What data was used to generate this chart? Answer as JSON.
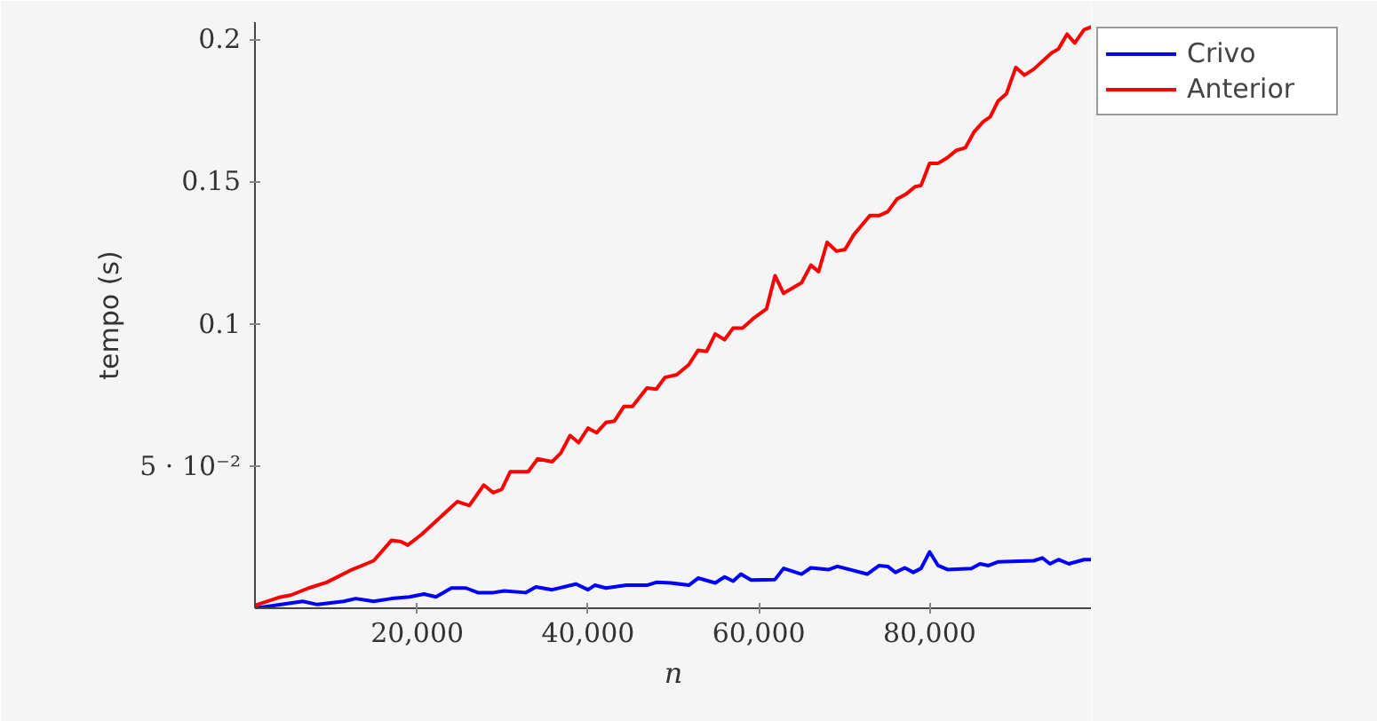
{
  "chart_data": {
    "type": "line",
    "xlabel": "n",
    "ylabel": "tempo (s)",
    "xlim": [
      1000,
      99000
    ],
    "ylim": [
      0,
      0.206
    ],
    "xticks": [
      {
        "value": 20000,
        "label": "20,000"
      },
      {
        "value": 40000,
        "label": "40,000"
      },
      {
        "value": 60000,
        "label": "60,000"
      },
      {
        "value": 80000,
        "label": "80,000"
      }
    ],
    "yticks": [
      {
        "value": 0.05,
        "label": "5 · 10⁻²"
      },
      0.1,
      0.15,
      0.2
    ],
    "grid": false,
    "legend": "top right",
    "marker": "none",
    "line_style": "solid",
    "series": [
      {
        "name": "Crivo",
        "color": "#0000ff",
        "x": [
          1000,
          6600,
          8300,
          11400,
          12800,
          14900,
          17000,
          19100,
          20800,
          22200,
          24000,
          25700,
          27100,
          28900,
          30200,
          32700,
          33900,
          35800,
          38600,
          40000,
          40800,
          42100,
          44500,
          46900,
          48000,
          49700,
          51800,
          52900,
          54900,
          56000,
          57000,
          57900,
          59100,
          61900,
          62900,
          65000,
          66100,
          68200,
          69200,
          72700,
          74100,
          75100,
          76000,
          77100,
          78100,
          79000,
          80000,
          81000,
          82100,
          84900,
          85900,
          86900,
          88000,
          92200,
          93200,
          94100,
          95100,
          96300,
          98100,
          99000
        ],
        "values": [
          0,
          0.0024,
          0.0013,
          0.0024,
          0.0034,
          0.0024,
          0.0034,
          0.004,
          0.005,
          0.004,
          0.0071,
          0.0071,
          0.0055,
          0.0055,
          0.0061,
          0.0055,
          0.0075,
          0.0065,
          0.0085,
          0.0065,
          0.0081,
          0.0071,
          0.0081,
          0.0081,
          0.0091,
          0.0089,
          0.0081,
          0.0106,
          0.0089,
          0.011,
          0.0095,
          0.012,
          0.0099,
          0.0101,
          0.014,
          0.012,
          0.0142,
          0.0136,
          0.0147,
          0.012,
          0.015,
          0.0147,
          0.0126,
          0.0142,
          0.0126,
          0.014,
          0.0198,
          0.015,
          0.0136,
          0.014,
          0.0156,
          0.015,
          0.0163,
          0.0167,
          0.0177,
          0.0156,
          0.0171,
          0.0156,
          0.0171,
          0.0171
        ]
      },
      {
        "name": "Anterior",
        "color": "#ff0000",
        "x": [
          1000,
          3800,
          5200,
          7300,
          9400,
          12100,
          14900,
          17000,
          18100,
          18900,
          20500,
          24700,
          26100,
          27800,
          28900,
          29900,
          30900,
          33000,
          34100,
          35800,
          36800,
          37900,
          38900,
          40000,
          41000,
          42100,
          43100,
          44200,
          45200,
          46900,
          48000,
          49000,
          50400,
          51800,
          52900,
          53900,
          54900,
          56000,
          57000,
          58100,
          59500,
          60900,
          61900,
          62900,
          65000,
          66100,
          67000,
          68000,
          69100,
          70100,
          71100,
          73000,
          74100,
          75100,
          76200,
          77200,
          78300,
          79000,
          80000,
          81000,
          82100,
          83100,
          84200,
          85200,
          86300,
          87100,
          88000,
          89000,
          90100,
          91100,
          92200,
          94300,
          95100,
          96100,
          97000,
          98100,
          99000
        ],
        "values": [
          0.001,
          0.0038,
          0.0046,
          0.0071,
          0.0091,
          0.0132,
          0.0167,
          0.0239,
          0.0234,
          0.0222,
          0.0259,
          0.0375,
          0.0361,
          0.0433,
          0.0406,
          0.0418,
          0.048,
          0.048,
          0.0525,
          0.0515,
          0.0545,
          0.0607,
          0.0582,
          0.0633,
          0.0617,
          0.0653,
          0.0658,
          0.0709,
          0.0709,
          0.0774,
          0.077,
          0.0811,
          0.0821,
          0.0856,
          0.0907,
          0.0903,
          0.0964,
          0.0944,
          0.0985,
          0.0985,
          0.1022,
          0.1052,
          0.1169,
          0.1107,
          0.1144,
          0.1206,
          0.1183,
          0.1286,
          0.1255,
          0.1261,
          0.1312,
          0.138,
          0.138,
          0.1394,
          0.1439,
          0.1455,
          0.1482,
          0.1486,
          0.1564,
          0.1564,
          0.1584,
          0.1609,
          0.1619,
          0.1674,
          0.1711,
          0.1727,
          0.1782,
          0.1809,
          0.1901,
          0.1874,
          0.1895,
          0.1952,
          0.1966,
          0.2018,
          0.1987,
          0.2034,
          0.2044
        ]
      }
    ]
  }
}
